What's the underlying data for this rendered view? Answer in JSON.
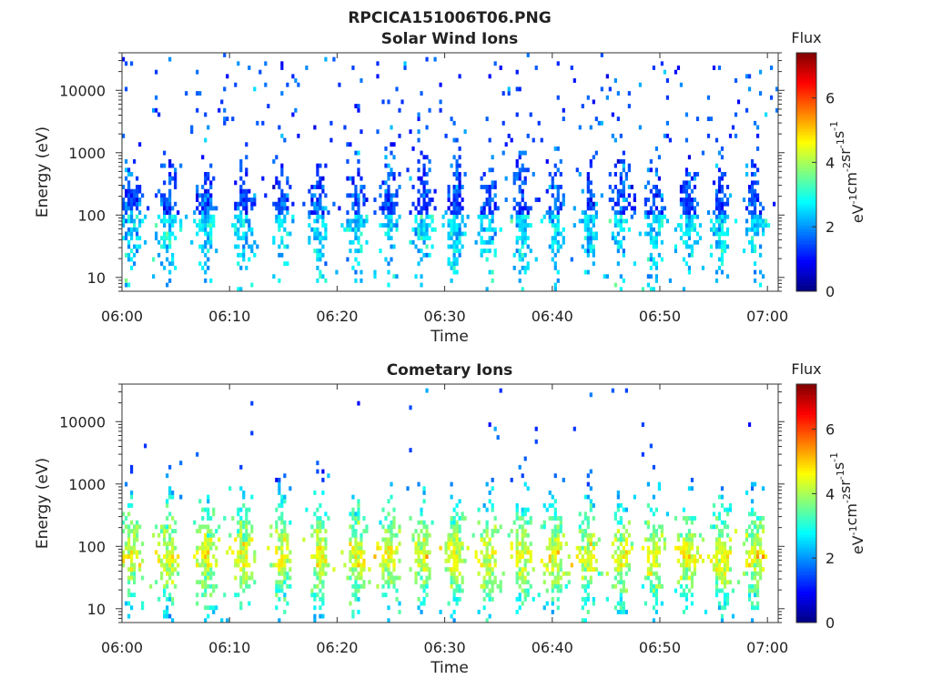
{
  "page": {
    "title": "RPCICA151006T06.PNG"
  },
  "chart_data": [
    {
      "type": "heatmap",
      "title": "Solar Wind Ions",
      "xlabel": "Time",
      "ylabel": "Energy (eV)",
      "x_ticks": [
        "06:00",
        "06:10",
        "06:20",
        "06:30",
        "06:40",
        "06:50",
        "07:00"
      ],
      "xlim": [
        "06:00",
        "07:01"
      ],
      "y_scale": "log",
      "y_ticks": [
        "10",
        "100",
        "1000",
        "10000"
      ],
      "ylim": [
        6,
        40000
      ],
      "colorbar": {
        "label": "eV-1cm-2sr-1s-1",
        "label_parts": [
          [
            "eV",
            "-1"
          ],
          [
            "cm",
            "-2"
          ],
          [
            "sr",
            "-1"
          ],
          [
            "s",
            "-1"
          ]
        ],
        "title": "Flux",
        "ticks": [
          "0",
          "2",
          "4",
          "6"
        ],
        "range": [
          0,
          7.4
        ],
        "colormap": "jet"
      },
      "description_values": {
        "burst_minutes": [
          0.8,
          4.3,
          7.8,
          11.3,
          14.8,
          18.3,
          21.8,
          24.9,
          28.0,
          31.0,
          34.1,
          37.2,
          40.3,
          43.4,
          46.4,
          49.5,
          52.6,
          55.7,
          58.8
        ],
        "core_energy_eV": 100,
        "core_flux": 1.5,
        "peak_flux": 3.5
      }
    },
    {
      "type": "heatmap",
      "title": "Cometary Ions",
      "xlabel": "Time",
      "ylabel": "Energy (eV)",
      "x_ticks": [
        "06:00",
        "06:10",
        "06:20",
        "06:30",
        "06:40",
        "06:50",
        "07:00"
      ],
      "xlim": [
        "06:00",
        "07:01"
      ],
      "y_scale": "log",
      "y_ticks": [
        "10",
        "100",
        "1000",
        "10000"
      ],
      "ylim": [
        6,
        40000
      ],
      "colorbar": {
        "label": "eV-1cm-2sr-1s-1",
        "label_parts": [
          [
            "eV",
            "-1"
          ],
          [
            "cm",
            "-2"
          ],
          [
            "sr",
            "-1"
          ],
          [
            "s",
            "-1"
          ]
        ],
        "title": "Flux",
        "ticks": [
          "0",
          "2",
          "4",
          "6"
        ],
        "range": [
          0,
          7.4
        ],
        "colormap": "jet"
      },
      "description_values": {
        "burst_minutes": [
          0.8,
          4.3,
          7.8,
          11.3,
          14.8,
          18.3,
          21.8,
          24.9,
          28.0,
          31.0,
          34.1,
          37.2,
          40.3,
          43.4,
          46.4,
          49.5,
          52.6,
          55.7,
          58.8
        ],
        "core_energy_eV": 70,
        "core_flux": 4.5,
        "peak_flux": 6.0
      }
    }
  ]
}
